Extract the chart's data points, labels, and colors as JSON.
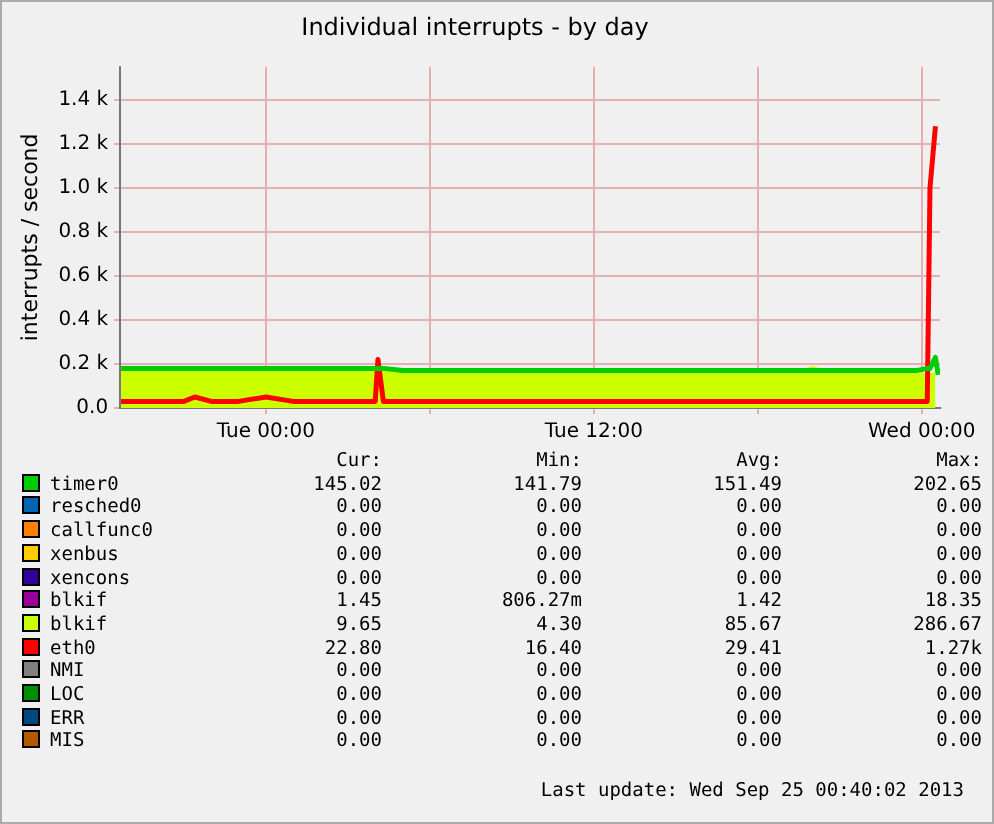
{
  "chart_data": {
    "type": "area",
    "title": "Individual interrupts - by day",
    "ylabel": "interrupts / second",
    "x": [
      "2013-09-23T18:42",
      "2013-09-23T20:00",
      "2013-09-23T21:00",
      "2013-09-23T21:24",
      "2013-09-23T22:00",
      "2013-09-23T23:00",
      "2013-09-24T00:00",
      "2013-09-24T01:00",
      "2013-09-24T02:00",
      "2013-09-24T03:00",
      "2013-09-24T04:00",
      "2013-09-24T04:06",
      "2013-09-24T04:18",
      "2013-09-24T05:00",
      "2013-09-24T06:00",
      "2013-09-24T07:00",
      "2013-09-24T08:00",
      "2013-09-24T09:00",
      "2013-09-24T10:00",
      "2013-09-24T11:00",
      "2013-09-24T12:00",
      "2013-09-24T13:00",
      "2013-09-24T14:00",
      "2013-09-24T15:00",
      "2013-09-24T16:00",
      "2013-09-24T17:00",
      "2013-09-24T18:00",
      "2013-09-24T19:00",
      "2013-09-24T20:00",
      "2013-09-24T21:00",
      "2013-09-24T22:00",
      "2013-09-24T23:00",
      "2013-09-24T23:48",
      "2013-09-25T00:12",
      "2013-09-25T00:18",
      "2013-09-25T00:30",
      "2013-09-25T00:36"
    ],
    "xlim": [
      "2013-09-23T18:40",
      "2013-09-25T00:40"
    ],
    "xticks": [
      {
        "value": "2013-09-24T00:00",
        "label": "Tue 00:00"
      },
      {
        "value": "2013-09-24T06:00",
        "label": null
      },
      {
        "value": "2013-09-24T12:00",
        "label": "Tue 12:00"
      },
      {
        "value": "2013-09-24T18:00",
        "label": null
      },
      {
        "value": "2013-09-25T00:00",
        "label": "Wed 00:00"
      }
    ],
    "ylim": [
      0,
      1550
    ],
    "yticks": [
      {
        "value": 0,
        "label": "0.0"
      },
      {
        "value": 200,
        "label": "0.2 k"
      },
      {
        "value": 400,
        "label": "0.4 k"
      },
      {
        "value": 600,
        "label": "0.6 k"
      },
      {
        "value": 800,
        "label": "0.8 k"
      },
      {
        "value": 1000,
        "label": "1.0 k"
      },
      {
        "value": 1200,
        "label": "1.2 k"
      },
      {
        "value": 1400,
        "label": "1.4 k"
      }
    ],
    "grid": true,
    "legend": "bottom",
    "series": [
      {
        "name": "timer0",
        "color": "#00cc00",
        "type": "line",
        "values": [
          180,
          180,
          180,
          180,
          180,
          180,
          180,
          180,
          180,
          180,
          180,
          180,
          180,
          170,
          170,
          170,
          170,
          170,
          170,
          170,
          170,
          170,
          170,
          170,
          170,
          170,
          170,
          170,
          170,
          170,
          170,
          170,
          170,
          180,
          180,
          230,
          150
        ]
      },
      {
        "name": "resched0",
        "color": "#0066b3",
        "type": "line",
        "values": [
          null,
          null,
          null,
          null,
          null,
          null,
          null,
          null,
          null,
          null,
          null,
          null,
          null,
          null,
          null,
          null,
          null,
          null,
          null,
          null,
          null,
          null,
          null,
          null,
          null,
          null,
          null,
          null,
          null,
          null,
          null,
          null,
          null,
          null,
          null,
          null,
          null
        ]
      },
      {
        "name": "callfunc0",
        "color": "#ff8000",
        "type": "line",
        "values": [
          null,
          null,
          null,
          null,
          null,
          null,
          null,
          null,
          null,
          null,
          null,
          null,
          null,
          null,
          null,
          null,
          null,
          null,
          null,
          null,
          null,
          null,
          null,
          null,
          null,
          null,
          null,
          null,
          null,
          null,
          null,
          null,
          null,
          null,
          null,
          null,
          null
        ]
      },
      {
        "name": "xenbus",
        "color": "#ffcc00",
        "type": "line",
        "values": [
          null,
          null,
          null,
          null,
          null,
          null,
          null,
          null,
          null,
          null,
          null,
          null,
          null,
          null,
          null,
          null,
          null,
          null,
          null,
          null,
          null,
          null,
          null,
          null,
          null,
          null,
          null,
          null,
          null,
          null,
          null,
          null,
          null,
          null,
          null,
          null,
          null
        ]
      },
      {
        "name": "xencons",
        "color": "#330099",
        "type": "line",
        "values": [
          null,
          null,
          null,
          null,
          null,
          null,
          null,
          null,
          null,
          null,
          null,
          null,
          null,
          null,
          null,
          null,
          null,
          null,
          null,
          null,
          null,
          null,
          null,
          null,
          null,
          null,
          null,
          null,
          null,
          null,
          null,
          null,
          null,
          null,
          null,
          null,
          null
        ]
      },
      {
        "name": "blkif",
        "color": "#990099",
        "type": "line",
        "values": [
          null,
          null,
          null,
          null,
          null,
          null,
          null,
          null,
          null,
          null,
          null,
          null,
          null,
          null,
          null,
          null,
          null,
          null,
          null,
          null,
          null,
          null,
          null,
          null,
          null,
          null,
          null,
          null,
          null,
          null,
          null,
          null,
          null,
          null,
          null,
          null,
          null
        ]
      },
      {
        "name": "blkif",
        "color": "#ccff00",
        "values": [
          170,
          170,
          170,
          170,
          170,
          170,
          170,
          170,
          170,
          170,
          170,
          170,
          170,
          160,
          160,
          160,
          160,
          160,
          160,
          160,
          160,
          160,
          160,
          160,
          160,
          160,
          160,
          160,
          190,
          160,
          160,
          160,
          160,
          160,
          160,
          160,
          null
        ]
      },
      {
        "name": "eth0",
        "color": "#ff0000",
        "type": "line",
        "values": [
          30,
          30,
          30,
          50,
          30,
          30,
          50,
          30,
          30,
          30,
          30,
          220,
          30,
          30,
          30,
          30,
          30,
          30,
          30,
          30,
          30,
          30,
          30,
          30,
          30,
          30,
          30,
          30,
          30,
          30,
          30,
          30,
          30,
          30,
          1000,
          1280,
          null
        ]
      },
      {
        "name": "NMI",
        "color": "#808080",
        "type": "line",
        "values": [
          null,
          null,
          null,
          null,
          null,
          null,
          null,
          null,
          null,
          null,
          null,
          null,
          null,
          null,
          null,
          null,
          null,
          null,
          null,
          null,
          null,
          null,
          null,
          null,
          null,
          null,
          null,
          null,
          null,
          null,
          null,
          null,
          null,
          null,
          null,
          null,
          null
        ]
      },
      {
        "name": "LOC",
        "color": "#008f00",
        "type": "line",
        "values": [
          null,
          null,
          null,
          null,
          null,
          null,
          null,
          null,
          null,
          null,
          null,
          null,
          null,
          null,
          null,
          null,
          null,
          null,
          null,
          null,
          null,
          null,
          null,
          null,
          null,
          null,
          null,
          null,
          null,
          null,
          null,
          null,
          null,
          null,
          null,
          null,
          null
        ]
      },
      {
        "name": "ERR",
        "color": "#00487d",
        "type": "line",
        "values": [
          null,
          null,
          null,
          null,
          null,
          null,
          null,
          null,
          null,
          null,
          null,
          null,
          null,
          null,
          null,
          null,
          null,
          null,
          null,
          null,
          null,
          null,
          null,
          null,
          null,
          null,
          null,
          null,
          null,
          null,
          null,
          null,
          null,
          null,
          null,
          null,
          null
        ]
      },
      {
        "name": "MIS",
        "color": "#b35a00",
        "type": "line",
        "values": [
          null,
          null,
          null,
          null,
          null,
          null,
          null,
          null,
          null,
          null,
          null,
          null,
          null,
          null,
          null,
          null,
          null,
          null,
          null,
          null,
          null,
          null,
          null,
          null,
          null,
          null,
          null,
          null,
          null,
          null,
          null,
          null,
          null,
          null,
          null,
          null,
          null
        ]
      }
    ],
    "annotations": [
      "Cur:",
      "Min:",
      "Avg:",
      "Max:",
      "145.02",
      "141.79",
      "151.49",
      "202.65",
      "0.00",
      "0.00",
      "0.00",
      "0.00",
      "0.00",
      "0.00",
      "0.00",
      "0.00",
      "0.00",
      "0.00",
      "0.00",
      "0.00",
      "0.00",
      "0.00",
      "0.00",
      "0.00",
      "1.45",
      "806.27m",
      "1.42",
      "18.35",
      "9.65",
      "4.30",
      "85.67",
      "286.67",
      "22.80",
      "16.40",
      "29.41",
      "1.27k",
      "0.00",
      "0.00",
      "0.00",
      "0.00",
      "0.00",
      "0.00",
      "0.00",
      "0.00",
      "0.00",
      "0.00",
      "0.00",
      "0.00",
      "0.00",
      "0.00",
      "0.00",
      "0.00",
      "Last update: Wed Sep 25 00:40:02 2013"
    ]
  }
}
